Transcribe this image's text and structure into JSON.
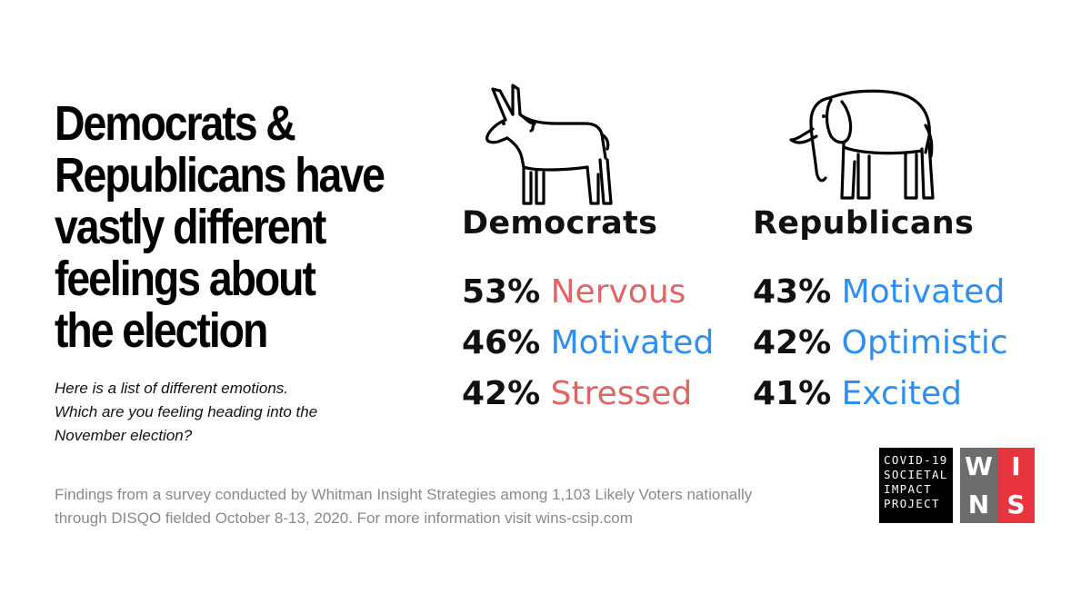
{
  "headline": {
    "lines": [
      "Democrats &",
      "Republicans have",
      "vastly different",
      "feelings about",
      "the election"
    ]
  },
  "question": {
    "lines": [
      "Here is a list of different emotions.",
      "Which are you feeling heading into the",
      "November election?"
    ]
  },
  "democrats": {
    "name": "Democrats",
    "icon": "donkey-icon",
    "stats": [
      {
        "pct": "53%",
        "emotion": "Nervous",
        "color": "#e06666"
      },
      {
        "pct": "46%",
        "emotion": "Motivated",
        "color": "#2e8ff0"
      },
      {
        "pct": "42%",
        "emotion": "Stressed",
        "color": "#e06666"
      }
    ]
  },
  "republicans": {
    "name": "Republicans",
    "icon": "elephant-icon",
    "stats": [
      {
        "pct": "43%",
        "emotion": "Motivated",
        "color": "#2e8ff0"
      },
      {
        "pct": "42%",
        "emotion": "Optimistic",
        "color": "#2e8ff0"
      },
      {
        "pct": "41%",
        "emotion": "Excited",
        "color": "#2e8ff0"
      }
    ]
  },
  "footer": {
    "lines": [
      "Findings from a survey conducted by Whitman Insight Strategies among 1,103 Likely Voters nationally",
      "through DISQO fielded October 8-13, 2020. For more information visit wins-csip.com"
    ]
  },
  "logo": {
    "project_lines": [
      "COVID-19",
      "SOCIETAL",
      "IMPACT",
      "PROJECT"
    ],
    "wins_letters": [
      {
        "letter": "W",
        "color": "#6d6d6d"
      },
      {
        "letter": "I",
        "color": "#e8343f"
      },
      {
        "letter": "N",
        "color": "#6d6d6d"
      },
      {
        "letter": "S",
        "color": "#e8343f"
      }
    ]
  }
}
